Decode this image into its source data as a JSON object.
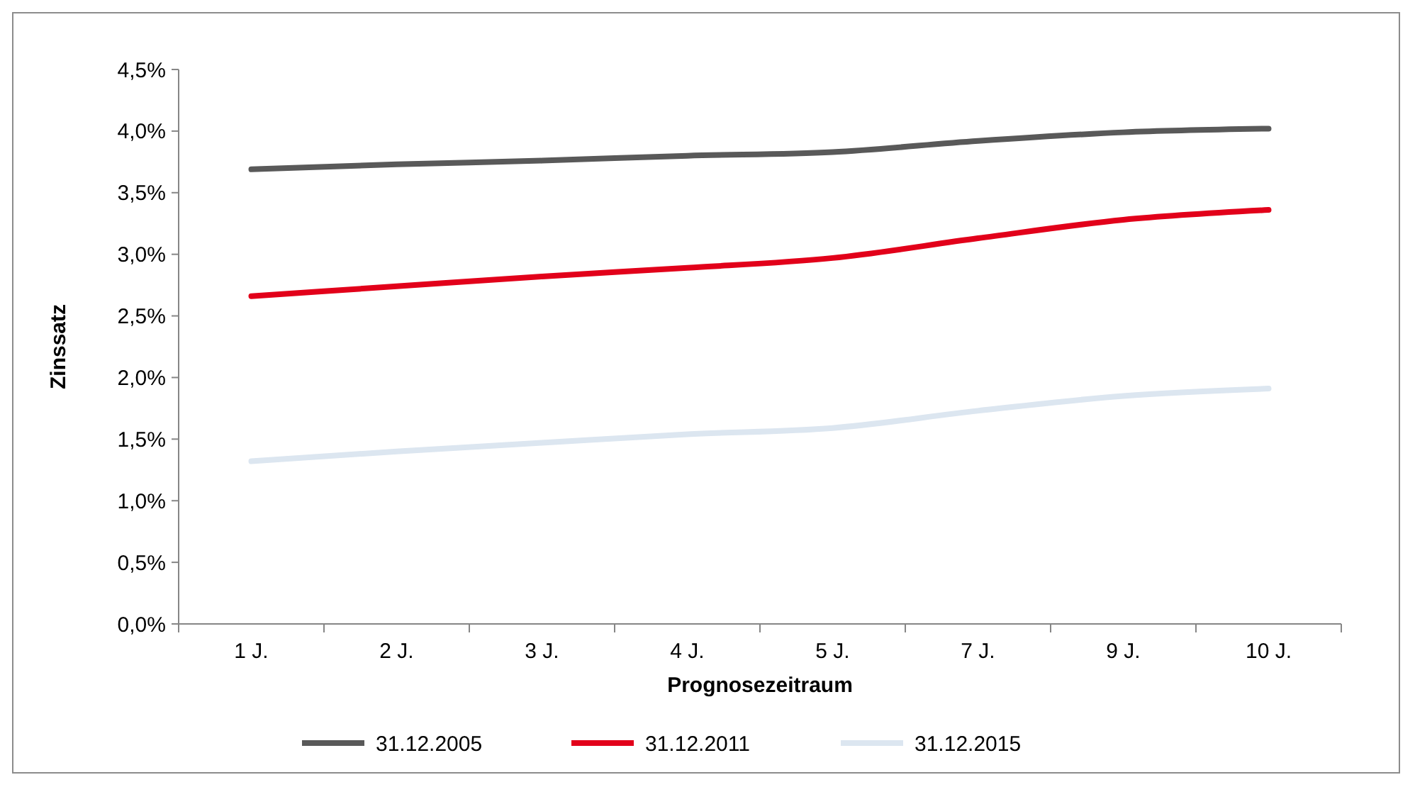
{
  "chart_data": {
    "type": "line",
    "xlabel": "Prognosezeitraum",
    "ylabel": "Zinssatz",
    "categories": [
      "1 J.",
      "2 J.",
      "3 J.",
      "4 J.",
      "5 J.",
      "7 J.",
      "9 J.",
      "10 J."
    ],
    "ylim": [
      0,
      4.5
    ],
    "yticks": [
      {
        "value": 0,
        "label": "0,0%"
      },
      {
        "value": 0.5,
        "label": "0,5%"
      },
      {
        "value": 1,
        "label": "1,0%"
      },
      {
        "value": 1.5,
        "label": "1,5%"
      },
      {
        "value": 2,
        "label": "2,0%"
      },
      {
        "value": 2.5,
        "label": "2,5%"
      },
      {
        "value": 3,
        "label": "3,0%"
      },
      {
        "value": 3.5,
        "label": "3,5%"
      },
      {
        "value": 4,
        "label": "4,0%"
      },
      {
        "value": 4.5,
        "label": "4,5%"
      }
    ],
    "legend": "bottom",
    "grid": false,
    "marker": "none",
    "line_style": "solid",
    "series": [
      {
        "name": "31.12.2005",
        "color": "#595959",
        "values": [
          3.69,
          3.73,
          3.76,
          3.8,
          3.83,
          3.92,
          3.99,
          4.02
        ]
      },
      {
        "name": "31.12.2011",
        "color": "#e2001a",
        "values": [
          2.66,
          2.74,
          2.82,
          2.89,
          2.97,
          3.13,
          3.28,
          3.36
        ]
      },
      {
        "name": "31.12.2015",
        "color": "#dce6f0",
        "values": [
          1.32,
          1.4,
          1.47,
          1.54,
          1.59,
          1.73,
          1.85,
          1.91
        ]
      }
    ]
  }
}
